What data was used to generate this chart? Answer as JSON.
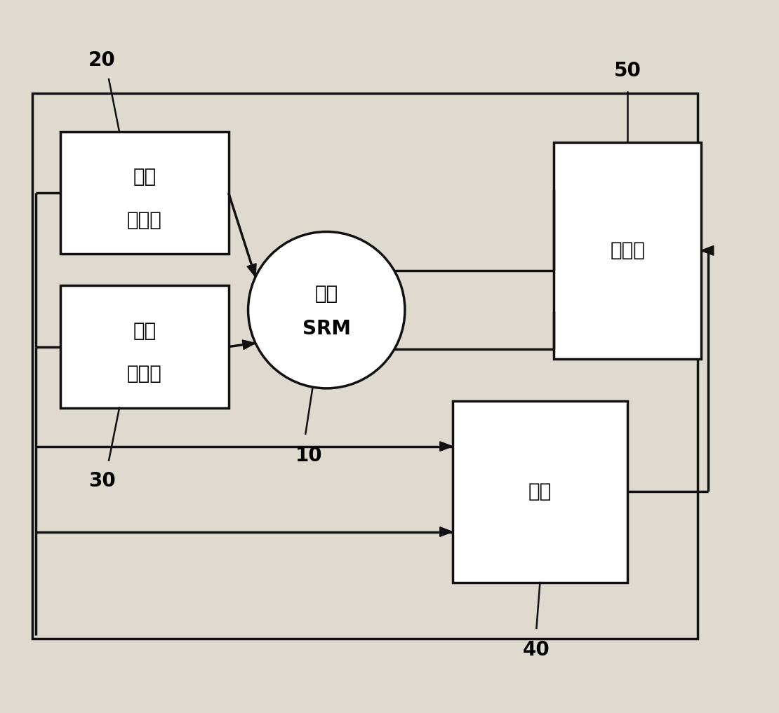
{
  "bg_color": "#dedad0",
  "box_color": "#ffffff",
  "box_edge": "#111111",
  "line_color": "#111111",
  "label_20": "20",
  "label_10": "10",
  "label_30": "30",
  "label_40": "40",
  "label_50": "50",
  "text_sensor1_line1": "第一",
  "text_sensor1_line2": "传感器",
  "text_sensor2_line1": "第二",
  "text_sensor2_line2": "传感器",
  "text_srm_line1": "单相",
  "text_srm_line2": "SRM",
  "text_drive": "驱动部",
  "text_micro": "微机",
  "font_chinese": "SimSun",
  "font_size_box": 20,
  "font_size_number": 20,
  "lw": 2.5
}
